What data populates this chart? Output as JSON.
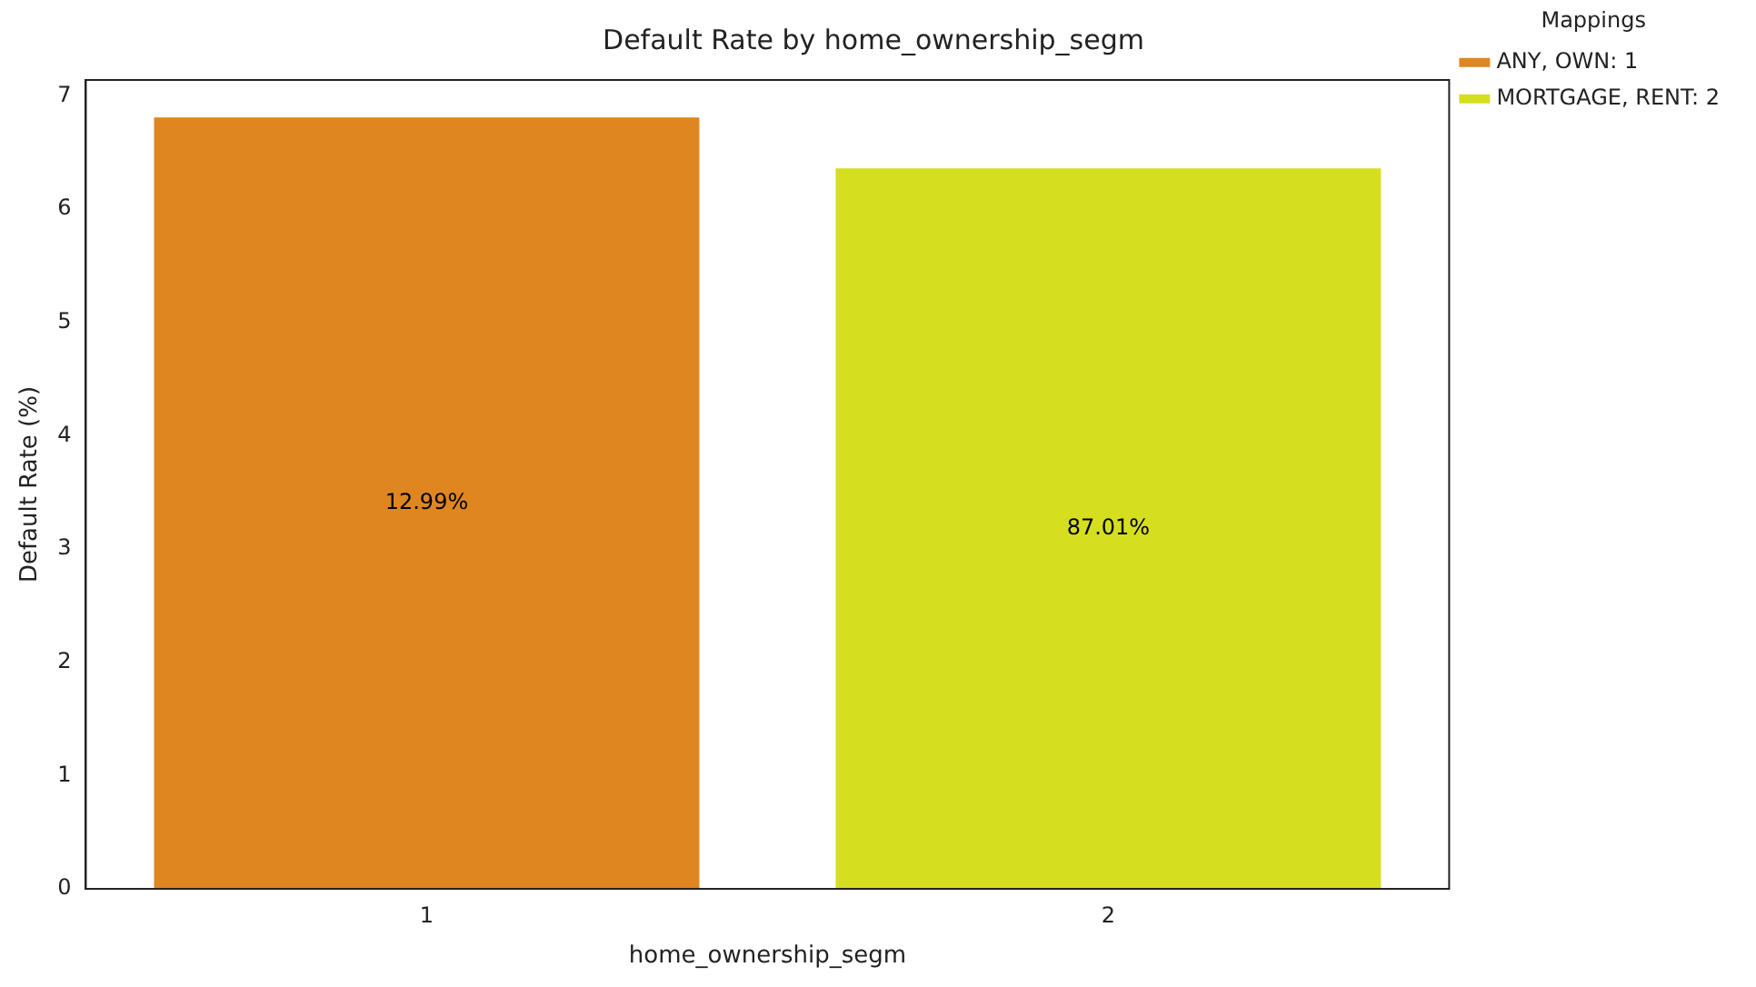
{
  "chart_data": {
    "type": "bar",
    "title": "Default Rate by home_ownership_segm",
    "xlabel": "home_ownership_segm",
    "ylabel": "Default Rate (%)",
    "legend_title": "Mappings",
    "categories": [
      "1",
      "2"
    ],
    "series": [
      {
        "name": "ANY, OWN: 1",
        "color": "#df8620",
        "values": [
          6.81,
          null
        ]
      },
      {
        "name": "MORTGAGE, RENT: 2",
        "color": "#d5df20",
        "values": [
          null,
          6.36
        ]
      }
    ],
    "annotations": [
      "12.99%",
      "87.01%"
    ],
    "ylim": [
      0,
      7.14
    ],
    "yticks": [
      0,
      1,
      2,
      3,
      4,
      5,
      6,
      7
    ],
    "grid": false,
    "legend": "top right"
  }
}
